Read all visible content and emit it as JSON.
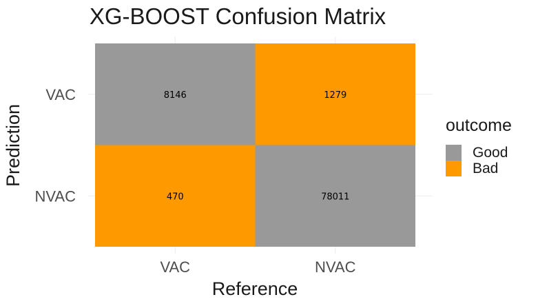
{
  "chart_data": {
    "type": "heatmap",
    "title": "XG-BOOST Confusion Matrix",
    "xlabel": "Reference",
    "ylabel": "Prediction",
    "x_categories": [
      "VAC",
      "NVAC"
    ],
    "y_categories": [
      "VAC",
      "NVAC"
    ],
    "cells": [
      {
        "reference": "VAC",
        "prediction": "VAC",
        "value": 8146,
        "outcome": "Good"
      },
      {
        "reference": "NVAC",
        "prediction": "VAC",
        "value": 1279,
        "outcome": "Bad"
      },
      {
        "reference": "VAC",
        "prediction": "NVAC",
        "value": 470,
        "outcome": "Bad"
      },
      {
        "reference": "NVAC",
        "prediction": "NVAC",
        "value": 78011,
        "outcome": "Good"
      }
    ],
    "legend": {
      "title": "outcome",
      "placement": "right",
      "entries": [
        {
          "label": "Good",
          "color": "#999999"
        },
        {
          "label": "Bad",
          "color": "#ff9900"
        }
      ]
    },
    "grid": true
  }
}
